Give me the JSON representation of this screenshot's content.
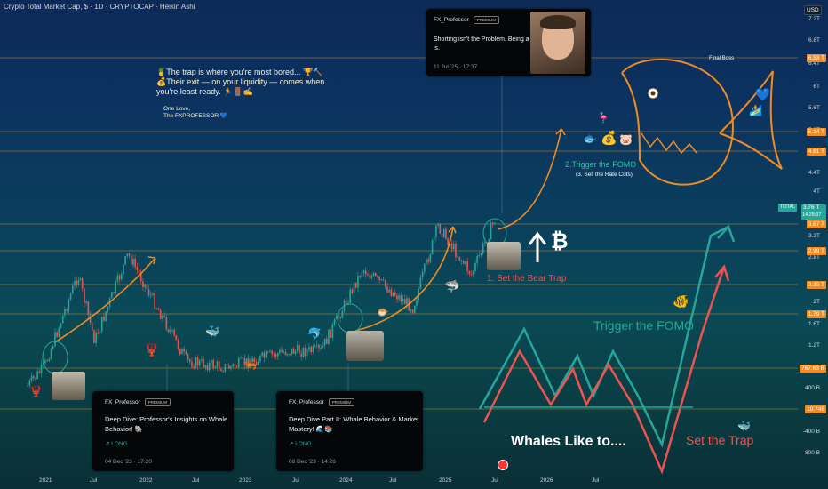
{
  "header": {
    "symbol_line": "Crypto Total Market Cap, $ · 1D · CRYPTOCAP · Heikin Ashi"
  },
  "currency_button": "USD",
  "price_axis": {
    "ticks": [
      "7.2T",
      "6.8T",
      "6.4T",
      "6T",
      "5.6T",
      "5.2T",
      "4.4T",
      "4T",
      "3.2T",
      "2.8T",
      "2T",
      "1.6T",
      "1.2T",
      "400 B",
      "-400 B",
      "-800 B"
    ]
  },
  "price_labels": [
    {
      "text": "6.53 T",
      "color": "#f08c24"
    },
    {
      "text": "5.14 T",
      "color": "#f08c24"
    },
    {
      "text": "4.81 T",
      "color": "#f08c24"
    },
    {
      "text": "3.67 T",
      "color": "#f08c24"
    },
    {
      "text": "2.99 T",
      "color": "#f08c24"
    },
    {
      "text": "2.32 T",
      "color": "#f08c24"
    },
    {
      "text": "1.79 T",
      "color": "#f08c24"
    },
    {
      "text": "767.63 B",
      "color": "#f08c24"
    },
    {
      "text": "10.748",
      "color": "#f08c24"
    }
  ],
  "current_price": {
    "symbol": "TOTAL",
    "value": "3.76 T",
    "countdown": "14:28:37",
    "color": "#26a69a"
  },
  "time_axis": {
    "ticks": [
      "2021",
      "Jul",
      "2022",
      "Jul",
      "2023",
      "Jul",
      "2024",
      "Jul",
      "2025",
      "Jul",
      "2026",
      "Jul"
    ]
  },
  "cards": [
    {
      "author": "FX_Professor",
      "badge": "PREMIUM",
      "title": "Shorting isn't the Problem. Being a ls.",
      "date": "11 Jul '25 · 17:37"
    },
    {
      "author": "FX_Professor",
      "badge": "PREMIUM",
      "title": "Deep Dive: Professor's Insights on Whale Behavior! 🐘",
      "tag": "↗ LONG",
      "date": "04 Dec '23 · 17:20"
    },
    {
      "author": "FX_Professor",
      "badge": "PREMIUM",
      "title": "Deep Dive Part II: Whale Behavior & Market Mastery! 🌊📚",
      "tag": "↗ LONG",
      "date": "08 Dec '23 · 14:26"
    }
  ],
  "quote_note": {
    "line1": "🍍The trap is where you're most bored... 🏆🔨",
    "line2": "💰Their exit — on your liquidity — comes when",
    "line3": "you're least ready. 🏃🚪✍",
    "sign1": "One Love,",
    "sign2": "The FXPROFESSOR 💙"
  },
  "annotations": {
    "trigger_fomo_upper": "2.Trigger the FOMO",
    "sell_rate_cuts": "(3. Sell the Rate Cuts)",
    "final_boss": "Final Boss",
    "set_bear_trap": "1. Set the Bear Trap",
    "bitcoin_symbol": "₿",
    "trigger_fomo_lower": "Trigger the FOMO",
    "whales_like_to": "Whales Like to....",
    "set_the_trap": "Set the Trap"
  },
  "colors": {
    "up": "#26a69a",
    "down": "#ef5350",
    "level_line": "#f0a030",
    "fomo_text": "#26a69a",
    "trap_text": "#ef5350",
    "arrow": "#f08c24"
  },
  "chart_data": {
    "type": "candlestick",
    "style": "Heikin Ashi",
    "interval": "1D",
    "title": "Crypto Total Market Cap, $ · 1D · CRYPTOCAP",
    "y_unit": "USD",
    "horizontal_levels_T": [
      6.53,
      5.14,
      4.81,
      3.67,
      2.99,
      2.32,
      1.79,
      0.7676
    ],
    "last_price_T": 3.76,
    "approx_path": [
      {
        "x": "2020-11",
        "y": 0.45
      },
      {
        "x": "2021-01",
        "y": 0.8
      },
      {
        "x": "2021-05",
        "y": 2.5
      },
      {
        "x": "2021-07",
        "y": 1.3
      },
      {
        "x": "2021-11",
        "y": 2.9
      },
      {
        "x": "2022-06",
        "y": 0.9
      },
      {
        "x": "2022-11",
        "y": 0.78
      },
      {
        "x": "2023-06",
        "y": 1.1
      },
      {
        "x": "2023-10",
        "y": 1.1
      },
      {
        "x": "2024-03",
        "y": 2.6
      },
      {
        "x": "2024-09",
        "y": 1.9
      },
      {
        "x": "2024-12",
        "y": 3.6
      },
      {
        "x": "2025-04",
        "y": 2.5
      },
      {
        "x": "2025-07",
        "y": 3.76
      }
    ],
    "grid": false,
    "legend": "none"
  }
}
